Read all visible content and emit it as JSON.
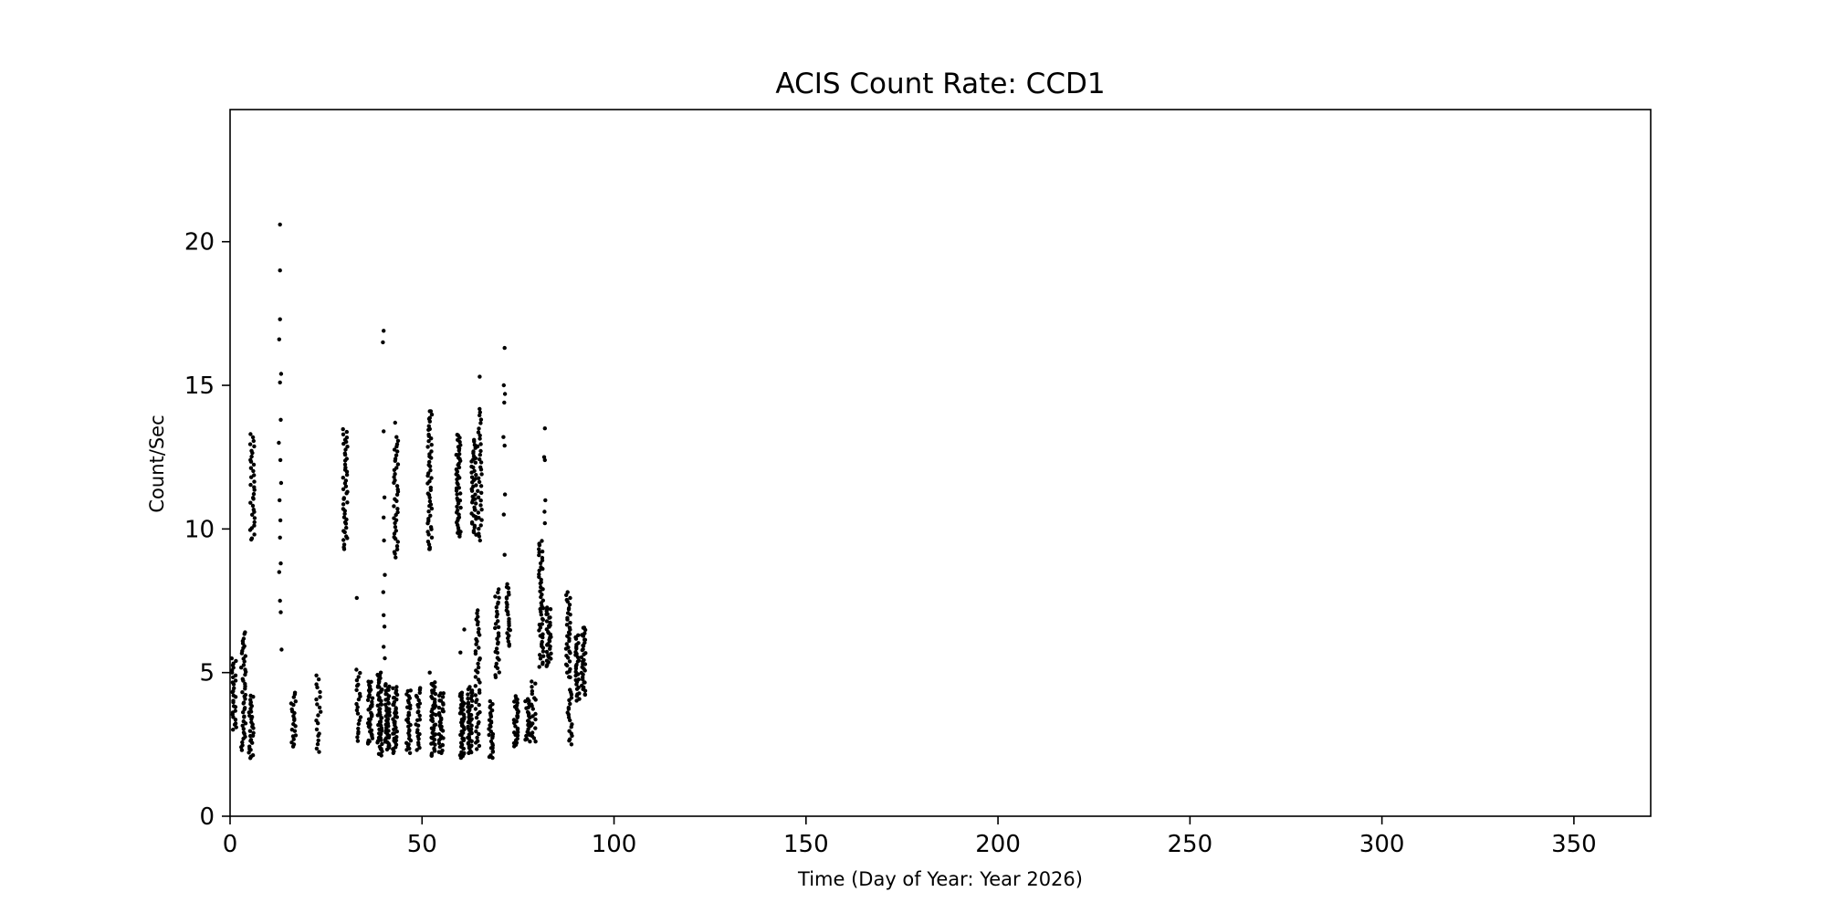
{
  "chart_data": {
    "type": "scatter",
    "title": "ACIS Count Rate: CCD1",
    "xlabel": "Time (Day of Year: Year 2026)",
    "ylabel": "Count/Sec",
    "xlim": [
      0,
      370
    ],
    "ylim": [
      0,
      24.6
    ],
    "xticks": [
      0,
      50,
      100,
      150,
      200,
      250,
      300,
      350
    ],
    "yticks": [
      0,
      5,
      10,
      15,
      20
    ],
    "grid": false,
    "marker_color": "#000000",
    "clusters": [
      {
        "day": 1.0,
        "low": 3.0,
        "high": 5.5,
        "n": 30
      },
      {
        "day": 3.5,
        "low": 2.3,
        "high": 6.4,
        "n": 45
      },
      {
        "day": 5.5,
        "low": 2.0,
        "high": 4.2,
        "n": 30
      },
      {
        "day": 5.8,
        "low": 9.6,
        "high": 13.3,
        "n": 35
      },
      {
        "day": 16.5,
        "low": 2.4,
        "high": 4.3,
        "n": 22
      },
      {
        "day": 23.0,
        "low": 2.2,
        "high": 4.9,
        "n": 20
      },
      {
        "day": 30.0,
        "low": 9.3,
        "high": 13.5,
        "n": 45
      },
      {
        "day": 33.5,
        "low": 2.6,
        "high": 5.1,
        "n": 22
      },
      {
        "day": 36.5,
        "low": 2.5,
        "high": 4.7,
        "n": 40
      },
      {
        "day": 39.0,
        "low": 2.1,
        "high": 5.0,
        "n": 55
      },
      {
        "day": 41.0,
        "low": 2.3,
        "high": 4.6,
        "n": 45
      },
      {
        "day": 43.0,
        "low": 2.2,
        "high": 4.5,
        "n": 40
      },
      {
        "day": 43.2,
        "low": 9.0,
        "high": 13.2,
        "n": 40
      },
      {
        "day": 46.5,
        "low": 2.2,
        "high": 4.4,
        "n": 30
      },
      {
        "day": 49.0,
        "low": 2.3,
        "high": 4.5,
        "n": 25
      },
      {
        "day": 52.0,
        "low": 9.3,
        "high": 14.1,
        "n": 50
      },
      {
        "day": 53.0,
        "low": 2.1,
        "high": 4.7,
        "n": 45
      },
      {
        "day": 55.0,
        "low": 2.2,
        "high": 4.3,
        "n": 35
      },
      {
        "day": 59.5,
        "low": 9.7,
        "high": 13.3,
        "n": 50
      },
      {
        "day": 60.5,
        "low": 2.0,
        "high": 4.3,
        "n": 45
      },
      {
        "day": 62.5,
        "low": 2.2,
        "high": 4.5,
        "n": 50
      },
      {
        "day": 63.5,
        "low": 9.8,
        "high": 13.1,
        "n": 45
      },
      {
        "day": 64.5,
        "low": 2.3,
        "high": 7.2,
        "n": 45
      },
      {
        "day": 65.0,
        "low": 9.6,
        "high": 14.2,
        "n": 35
      },
      {
        "day": 68.0,
        "low": 2.0,
        "high": 4.0,
        "n": 30
      },
      {
        "day": 69.5,
        "low": 4.8,
        "high": 7.9,
        "n": 30
      },
      {
        "day": 72.5,
        "low": 5.9,
        "high": 8.1,
        "n": 25
      },
      {
        "day": 74.5,
        "low": 2.4,
        "high": 4.2,
        "n": 30
      },
      {
        "day": 77.5,
        "low": 2.6,
        "high": 4.1,
        "n": 25
      },
      {
        "day": 79.0,
        "low": 2.6,
        "high": 4.7,
        "n": 20
      },
      {
        "day": 81.0,
        "low": 5.2,
        "high": 9.6,
        "n": 50
      },
      {
        "day": 83.0,
        "low": 5.2,
        "high": 7.3,
        "n": 35
      },
      {
        "day": 88.0,
        "low": 4.8,
        "high": 7.7,
        "n": 35
      },
      {
        "day": 88.5,
        "low": 2.5,
        "high": 4.4,
        "n": 20
      },
      {
        "day": 90.5,
        "low": 4.0,
        "high": 6.3,
        "n": 30
      },
      {
        "day": 92.0,
        "low": 4.2,
        "high": 6.6,
        "n": 35
      }
    ],
    "outliers": [
      {
        "x": 13.0,
        "y": 20.6
      },
      {
        "x": 13.0,
        "y": 19.0
      },
      {
        "x": 13.0,
        "y": 17.3
      },
      {
        "x": 12.8,
        "y": 16.6
      },
      {
        "x": 13.3,
        "y": 15.4
      },
      {
        "x": 13.0,
        "y": 15.1
      },
      {
        "x": 13.2,
        "y": 13.8
      },
      {
        "x": 12.7,
        "y": 13.0
      },
      {
        "x": 13.1,
        "y": 12.4
      },
      {
        "x": 13.3,
        "y": 11.6
      },
      {
        "x": 12.9,
        "y": 11.0
      },
      {
        "x": 13.1,
        "y": 10.3
      },
      {
        "x": 13.0,
        "y": 9.7
      },
      {
        "x": 13.2,
        "y": 8.8
      },
      {
        "x": 12.8,
        "y": 8.5
      },
      {
        "x": 13.0,
        "y": 7.5
      },
      {
        "x": 13.2,
        "y": 7.1
      },
      {
        "x": 13.4,
        "y": 5.8
      },
      {
        "x": 33.0,
        "y": 7.6
      },
      {
        "x": 40.0,
        "y": 16.9
      },
      {
        "x": 39.8,
        "y": 16.5
      },
      {
        "x": 40.0,
        "y": 13.4
      },
      {
        "x": 40.2,
        "y": 11.1
      },
      {
        "x": 40.0,
        "y": 10.4
      },
      {
        "x": 40.1,
        "y": 9.6
      },
      {
        "x": 40.3,
        "y": 8.4
      },
      {
        "x": 39.9,
        "y": 7.8
      },
      {
        "x": 40.0,
        "y": 7.0
      },
      {
        "x": 40.2,
        "y": 6.6
      },
      {
        "x": 40.0,
        "y": 5.9
      },
      {
        "x": 40.3,
        "y": 5.5
      },
      {
        "x": 43.0,
        "y": 13.7
      },
      {
        "x": 52.0,
        "y": 14.1
      },
      {
        "x": 52.0,
        "y": 9.3
      },
      {
        "x": 52.0,
        "y": 5.0
      },
      {
        "x": 65.0,
        "y": 15.3
      },
      {
        "x": 71.5,
        "y": 16.3
      },
      {
        "x": 71.3,
        "y": 15.0
      },
      {
        "x": 71.6,
        "y": 14.7
      },
      {
        "x": 71.4,
        "y": 14.4
      },
      {
        "x": 71.2,
        "y": 13.2
      },
      {
        "x": 71.5,
        "y": 12.9
      },
      {
        "x": 71.6,
        "y": 11.2
      },
      {
        "x": 71.3,
        "y": 10.5
      },
      {
        "x": 71.5,
        "y": 9.1
      },
      {
        "x": 82.0,
        "y": 13.5
      },
      {
        "x": 81.8,
        "y": 12.5
      },
      {
        "x": 82.0,
        "y": 12.4
      },
      {
        "x": 82.1,
        "y": 11.0
      },
      {
        "x": 81.9,
        "y": 10.6
      },
      {
        "x": 82.0,
        "y": 10.2
      },
      {
        "x": 87.9,
        "y": 7.8
      },
      {
        "x": 61.0,
        "y": 6.5
      },
      {
        "x": 60.0,
        "y": 5.7
      }
    ]
  }
}
